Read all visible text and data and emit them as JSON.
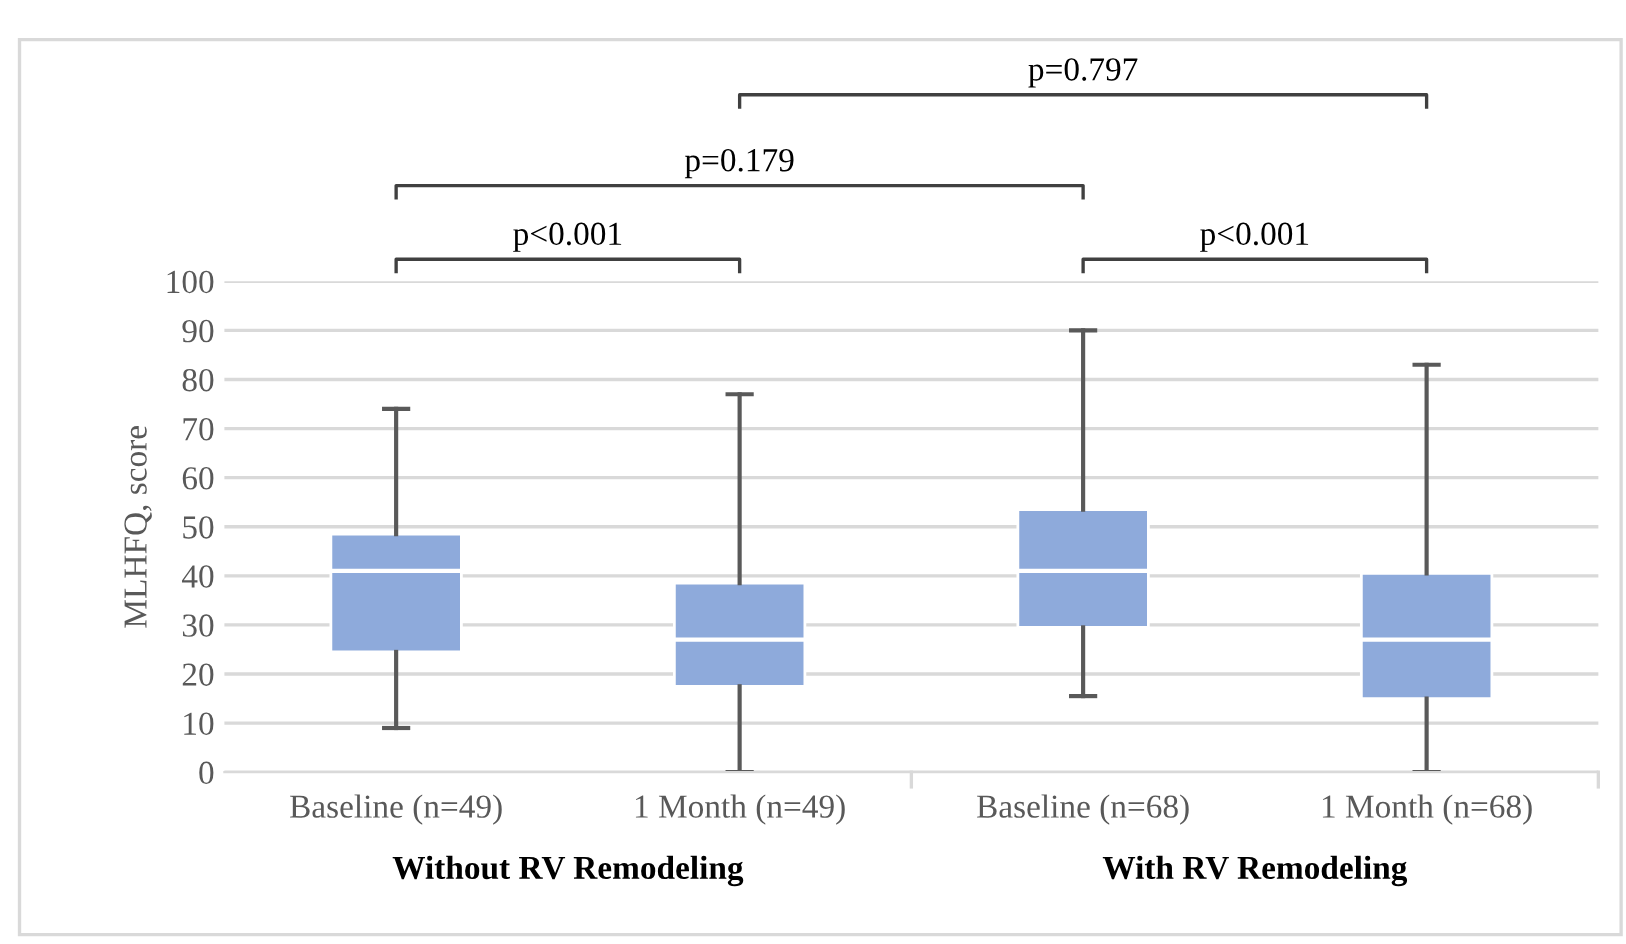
{
  "chart_data": {
    "type": "box",
    "ylabel": "MLHFQ, score",
    "categories": [
      "Baseline (n=49)",
      "1 Month (n=49)",
      "Baseline (n=68)",
      "1 Month (n=68)"
    ],
    "boxes": [
      {
        "low": 9,
        "q1": 24.5,
        "median": 41,
        "q3": 48.5,
        "high": 74
      },
      {
        "low": 0,
        "q1": 17.5,
        "median": 27,
        "q3": 38.5,
        "high": 77
      },
      {
        "low": 15.5,
        "q1": 29.5,
        "median": 41,
        "q3": 53.5,
        "high": 90
      },
      {
        "low": 0,
        "q1": 15,
        "median": 27,
        "q3": 40.5,
        "high": 83
      }
    ],
    "color": "#8eaadb",
    "ylim": [
      0,
      100
    ],
    "yticks": [
      0,
      10,
      20,
      30,
      40,
      50,
      60,
      70,
      80,
      90,
      100
    ],
    "grid": "y",
    "annotations": [
      "p<0.001",
      "p=0.179",
      "p=0.797",
      "p<0.001",
      "Without RV Remodeling",
      "With RV Remodeling"
    ]
  }
}
